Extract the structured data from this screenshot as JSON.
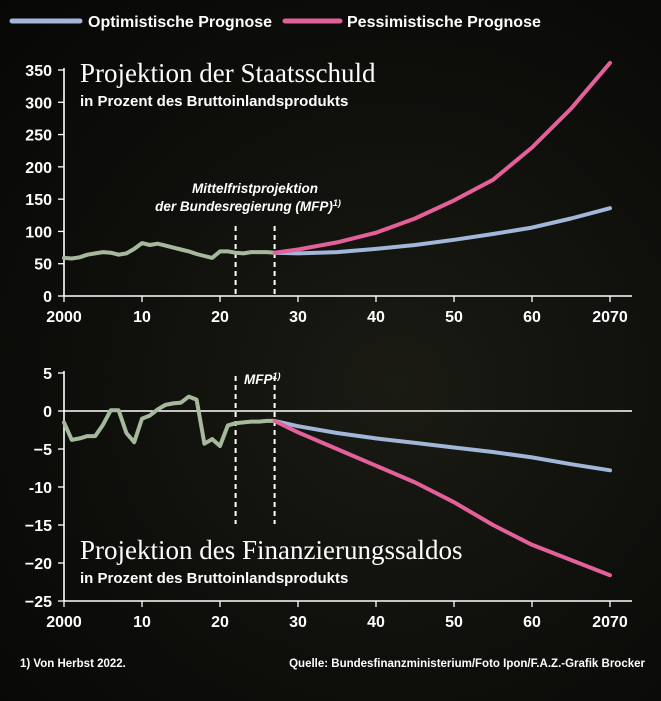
{
  "legend": {
    "optimistic": "Optimistische Prognose",
    "pessimistic": "Pessimistische Prognose"
  },
  "colors": {
    "historical": "#a6b99c",
    "optimistic": "#a1b6d9",
    "pessimistic": "#e4609a",
    "background": "#0e0e0b"
  },
  "footnote": "1) Von Herbst 2022.",
  "source": "Quelle: Bundesfinanzministerium/Foto Ipon/F.A.Z.-Grafik Brocker",
  "chart_data": [
    {
      "type": "line",
      "title": "Projektion der Staatsschuld",
      "subtitle": "in Prozent des Bruttoinlandsprodukts",
      "xlim": [
        2000,
        2070
      ],
      "ylim": [
        0,
        350
      ],
      "xticks": [
        2000,
        2010,
        2020,
        2030,
        2040,
        2050,
        2060,
        2070
      ],
      "xtick_labels": [
        "2000",
        "10",
        "20",
        "30",
        "40",
        "50",
        "60",
        "2070"
      ],
      "yticks": [
        0,
        50,
        100,
        150,
        200,
        250,
        300,
        350
      ],
      "ytick_labels": [
        "0",
        "50",
        "100",
        "150",
        "200",
        "250",
        "300",
        "350"
      ],
      "annotation": {
        "line1": "Mittelfristprojektion",
        "line2": "der Bundesregierung (MFP)",
        "sup": "1)"
      },
      "mfp_range": [
        2022,
        2027
      ],
      "grid": false,
      "legend_position": "top",
      "series": [
        {
          "key": "historical",
          "x": [
            2000,
            2001,
            2002,
            2003,
            2004,
            2005,
            2006,
            2007,
            2008,
            2009,
            2010,
            2011,
            2012,
            2013,
            2014,
            2015,
            2016,
            2017,
            2018,
            2019,
            2020,
            2021,
            2022,
            2023,
            2024,
            2025,
            2026,
            2027
          ],
          "y": [
            59,
            58,
            60,
            64,
            66,
            68,
            67,
            64,
            66,
            73,
            82,
            79,
            81,
            78,
            75,
            72,
            69,
            65,
            62,
            59,
            69,
            69,
            67,
            66,
            68,
            68,
            68,
            67
          ]
        },
        {
          "key": "optimistic",
          "name": "Optimistische Prognose",
          "x": [
            2027,
            2030,
            2035,
            2040,
            2045,
            2050,
            2055,
            2060,
            2065,
            2070
          ],
          "y": [
            67,
            66,
            68,
            73,
            79,
            87,
            96,
            106,
            120,
            136
          ]
        },
        {
          "key": "pessimistic",
          "name": "Pessimistische Prognose",
          "x": [
            2027,
            2030,
            2035,
            2040,
            2045,
            2050,
            2055,
            2060,
            2065,
            2070
          ],
          "y": [
            67,
            72,
            83,
            98,
            120,
            148,
            180,
            230,
            290,
            361
          ]
        }
      ]
    },
    {
      "type": "line",
      "title": "Projektion des Finanzierungssaldos",
      "subtitle": "in Prozent des Bruttoinlandsprodukts",
      "xlim": [
        2000,
        2070
      ],
      "ylim": [
        -25,
        5
      ],
      "xticks": [
        2000,
        2010,
        2020,
        2030,
        2040,
        2050,
        2060,
        2070
      ],
      "xtick_labels": [
        "2000",
        "10",
        "20",
        "30",
        "40",
        "50",
        "60",
        "2070"
      ],
      "yticks": [
        5,
        0,
        -5,
        -10,
        -15,
        -20,
        -25
      ],
      "ytick_labels": [
        "5",
        "0",
        "−5",
        "-10",
        "−15",
        "−20",
        "−25"
      ],
      "annotation": {
        "line1": "MFP",
        "sup": "1)"
      },
      "mfp_range": [
        2022,
        2027
      ],
      "grid": false,
      "series": [
        {
          "key": "historical",
          "x": [
            2000,
            2001,
            2002,
            2003,
            2004,
            2005,
            2006,
            2007,
            2008,
            2009,
            2010,
            2011,
            2012,
            2013,
            2014,
            2015,
            2016,
            2017,
            2018,
            2019,
            2020,
            2021,
            2022,
            2023,
            2024,
            2025,
            2026,
            2027
          ],
          "y": [
            -1.5,
            -3.8,
            -3.6,
            -3.3,
            -3.3,
            -1.8,
            0.1,
            0.1,
            -2.9,
            -4.1,
            -1.0,
            -0.6,
            0.2,
            0.8,
            1.0,
            1.1,
            1.9,
            1.5,
            -4.3,
            -3.7,
            -4.6,
            -1.9,
            -1.6,
            -1.5,
            -1.4,
            -1.4,
            -1.3,
            -1.3
          ]
        },
        {
          "key": "optimistic",
          "name": "Optimistische Prognose",
          "x": [
            2027,
            2030,
            2035,
            2040,
            2045,
            2050,
            2055,
            2060,
            2065,
            2070
          ],
          "y": [
            -1.3,
            -2.0,
            -2.9,
            -3.6,
            -4.2,
            -4.8,
            -5.4,
            -6.1,
            -7.0,
            -7.8
          ]
        },
        {
          "key": "pessimistic",
          "name": "Pessimistische Prognose",
          "x": [
            2027,
            2030,
            2035,
            2040,
            2045,
            2050,
            2055,
            2060,
            2065,
            2070
          ],
          "y": [
            -1.3,
            -2.8,
            -5.0,
            -7.2,
            -9.4,
            -12.0,
            -15.0,
            -17.6,
            -19.6,
            -21.6
          ]
        }
      ]
    }
  ]
}
